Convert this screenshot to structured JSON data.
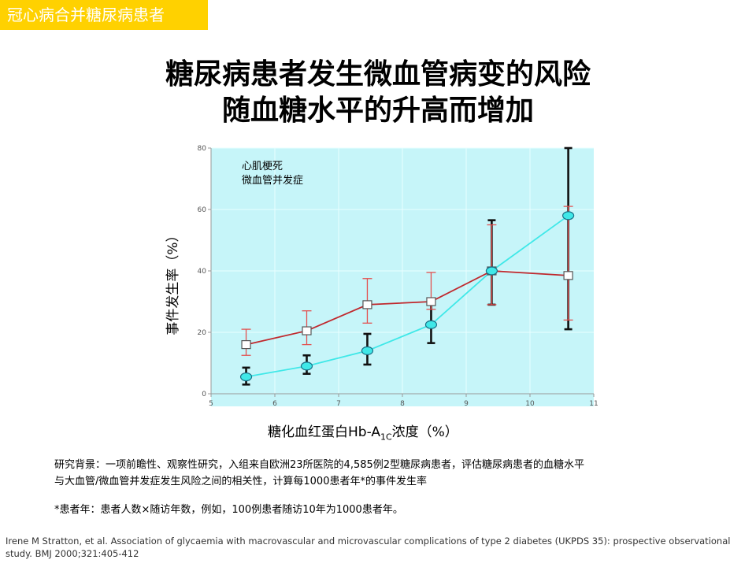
{
  "header": {
    "tag": "冠心病合并糖尿病患者",
    "title_line1": "糖尿病患者发生微血管病变的风险",
    "title_line2": "随血糖水平的升高而增加"
  },
  "chart_data": {
    "type": "line",
    "xlabel_main": "糖化血红蛋白Hb-A",
    "xlabel_sub": "1C",
    "xlabel_tail": "浓度（%）",
    "ylabel": "事件发生率（%）",
    "xlim": [
      5,
      11
    ],
    "ylim": [
      0,
      80
    ],
    "x_ticks": [
      "5",
      "6",
      "7",
      "8",
      "9",
      "10",
      "11"
    ],
    "y_ticks": [
      "0",
      "20",
      "40",
      "60",
      "80"
    ],
    "legend": [
      "心肌梗死",
      "微血管并发症"
    ],
    "legend_position": "top-left",
    "grid": true,
    "series": [
      {
        "name": "心肌梗死",
        "color": "#c0282d",
        "marker": "square",
        "x": [
          5.55,
          6.5,
          7.45,
          8.45,
          9.4,
          10.6
        ],
        "y": [
          16,
          20.5,
          29,
          30,
          40,
          38.5
        ],
        "err_low": [
          12.5,
          16,
          23,
          27.5,
          29,
          24
        ],
        "err_high": [
          21,
          27,
          37.5,
          39.5,
          55,
          61
        ]
      },
      {
        "name": "微血管并发症",
        "color": "#3fe8e8",
        "marker": "circle",
        "x": [
          5.55,
          6.5,
          7.45,
          8.45,
          9.4,
          10.6
        ],
        "y": [
          5.5,
          9,
          14,
          22.5,
          40,
          58
        ],
        "err_low": [
          3,
          6.5,
          9.5,
          16.5,
          29,
          21
        ],
        "err_high": [
          8.5,
          12.5,
          19.5,
          31,
          56.5,
          80
        ]
      }
    ]
  },
  "notes": {
    "background_line1": "研究背景：一项前瞻性、观察性研究，入组来自欧洲23所医院的4,585例2型糖尿病患者，评估糖尿病患者的血糖水平",
    "background_line2": "与大血管/微血管并发症发生风险之间的相关性，计算每1000患者年*的事件发生率",
    "footnote": "*患者年：患者人数×随访年数，例如，100例患者随访10年为1000患者年。"
  },
  "citation": "Irene M Stratton, et al. Association of glycaemia with macrovascular and microvascular complications of type 2 diabetes (UKPDS 35): prospective observational study. BMJ 2000;321:405-412"
}
